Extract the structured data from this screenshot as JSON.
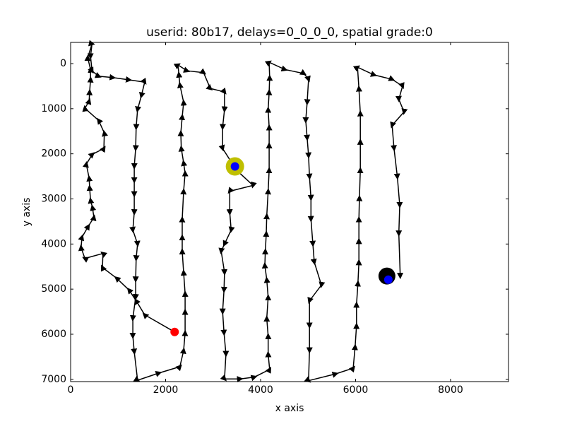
{
  "chart_data": {
    "type": "trajectory",
    "title": "userid: 80b17, delays=0_0_0_0, spatial grade:0",
    "x_label": "x axis",
    "y_label": "y axis",
    "xlim": [
      0,
      9220
    ],
    "ylim": [
      7050,
      -470
    ],
    "xticks": [
      0,
      2000,
      4000,
      6000,
      8000
    ],
    "yticks": [
      0,
      1000,
      2000,
      3000,
      4000,
      5000,
      6000,
      7000
    ],
    "color": "#000000",
    "x": [
      2190,
      1560,
      1380,
      1230,
      970,
      670,
      680,
      300,
      220,
      240,
      370,
      490,
      460,
      420,
      400,
      390,
      330,
      460,
      700,
      710,
      590,
      300,
      390,
      400,
      420,
      420,
      360,
      450,
      420,
      450,
      590,
      890,
      1230,
      1560,
      1490,
      1410,
      1380,
      1370,
      1340,
      1340,
      1340,
      1340,
      1310,
      1410,
      1380,
      1370,
      1370,
      1310,
      1310,
      1340,
      1410,
      1860,
      2300,
      2380,
      2410,
      2410,
      2410,
      2380,
      2350,
      2350,
      2350,
      2380,
      2410,
      2380,
      2330,
      2320,
      2350,
      2380,
      2300,
      2280,
      2260,
      2450,
      2800,
      2940,
      3240,
      3240,
      3200,
      3200,
      3490,
      3840,
      3350,
      3350,
      3380,
      3240,
      3170,
      3240,
      3230,
      3200,
      3230,
      3270,
      3240,
      3570,
      3870,
      4190,
      4160,
      4160,
      4130,
      4160,
      4130,
      4090,
      4100,
      4120,
      4130,
      4160,
      4180,
      4180,
      4180,
      4160,
      4180,
      4190,
      4180,
      4510,
      4910,
      5010,
      4980,
      4950,
      4980,
      5010,
      5030,
      5060,
      5060,
      5100,
      5130,
      5280,
      5030,
      5030,
      5030,
      5010,
      5580,
      5950,
      5990,
      6020,
      6020,
      6050,
      6070,
      6070,
      6070,
      6080,
      6100,
      6100,
      6100,
      6070,
      6040,
      6390,
      6770,
      6990,
      6910,
      7020,
      6770,
      6810,
      6880,
      6930,
      6910,
      6940
    ],
    "y": [
      5950,
      5570,
      5260,
      5020,
      4760,
      4520,
      4210,
      4320,
      4080,
      3850,
      3610,
      3410,
      3190,
      3030,
      2750,
      2540,
      2230,
      2010,
      1880,
      1540,
      1260,
      990,
      830,
      630,
      350,
      130,
      -130,
      -440,
      -160,
      160,
      280,
      310,
      360,
      410,
      710,
      1020,
      1410,
      1880,
      2280,
      2590,
      2900,
      3300,
      3690,
      4000,
      4320,
      4790,
      5180,
      5650,
      6040,
      6390,
      7020,
      6860,
      6720,
      6360,
      5970,
      5500,
      5100,
      4630,
      4160,
      3850,
      3450,
      2830,
      2430,
      2200,
      1880,
      1540,
      1180,
      860,
      470,
      240,
      30,
      160,
      200,
      550,
      630,
      1020,
      1410,
      1880,
      2360,
      2700,
      2830,
      3300,
      3690,
      4000,
      4160,
      4630,
      5020,
      5500,
      5970,
      6440,
      6990,
      6990,
      6950,
      6780,
      6440,
      6040,
      5650,
      5180,
      4790,
      4470,
      4160,
      3770,
      3380,
      2830,
      2360,
      1810,
      1410,
      1020,
      630,
      310,
      -30,
      130,
      220,
      350,
      860,
      1260,
      1650,
      2040,
      2510,
      2980,
      3450,
      4000,
      4400,
      4910,
      5260,
      5810,
      6360,
      7030,
      6880,
      6750,
      6280,
      5810,
      5340,
      4870,
      4400,
      3930,
      3450,
      2980,
      2360,
      1730,
      1100,
      550,
      80,
      250,
      350,
      500,
      790,
      1070,
      1370,
      1880,
      2510,
      3140,
      3770,
      4710
    ],
    "markers": [
      {
        "x": 2190,
        "y": 5950,
        "color": "#ff0000"
      },
      {
        "x": 3460,
        "y": 2280,
        "color": "#bfbf00"
      },
      {
        "x": 3460,
        "y": 2280,
        "color": "#0000ff"
      },
      {
        "x": 6660,
        "y": 4710,
        "color": "#000000"
      },
      {
        "x": 6690,
        "y": 4790,
        "color": "#0000ff"
      }
    ]
  }
}
